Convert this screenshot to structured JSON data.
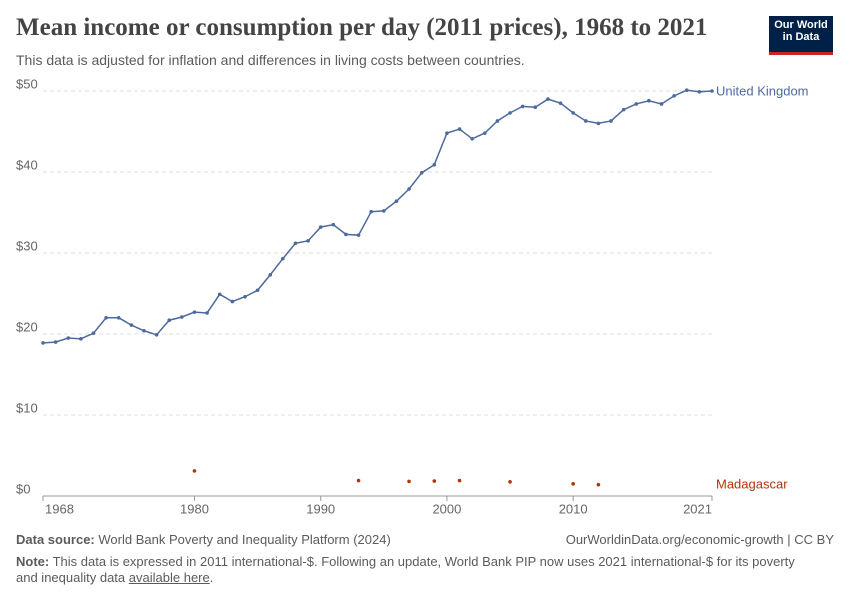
{
  "chart_data": {
    "type": "line",
    "title": "Mean income or consumption per day (2011 prices), 1968 to 2021",
    "subtitle": "This data is adjusted for inflation and differences in living costs between countries.",
    "logo": "Our World in Data",
    "x": [
      1968,
      1969,
      1970,
      1971,
      1972,
      1973,
      1974,
      1975,
      1976,
      1977,
      1978,
      1979,
      1980,
      1981,
      1982,
      1983,
      1984,
      1985,
      1986,
      1987,
      1988,
      1989,
      1990,
      1991,
      1992,
      1993,
      1994,
      1995,
      1996,
      1997,
      1998,
      1999,
      2000,
      2001,
      2002,
      2003,
      2004,
      2005,
      2006,
      2007,
      2008,
      2009,
      2010,
      2011,
      2012,
      2013,
      2014,
      2015,
      2016,
      2017,
      2018,
      2019,
      2020,
      2021
    ],
    "series": [
      {
        "name": "United Kingdom",
        "color": "#4c6a9c",
        "values": [
          18.9,
          19.0,
          19.5,
          19.4,
          20.1,
          22.0,
          22.0,
          21.1,
          20.4,
          19.9,
          21.7,
          22.1,
          22.7,
          22.6,
          24.9,
          24.0,
          24.6,
          25.4,
          27.3,
          29.3,
          31.2,
          31.5,
          33.2,
          33.5,
          32.3,
          32.2,
          35.1,
          35.2,
          36.4,
          37.9,
          39.9,
          40.9,
          44.8,
          45.3,
          44.1,
          44.8,
          46.3,
          47.3,
          48.1,
          48.0,
          49.0,
          48.5,
          47.3,
          46.3,
          46.0,
          46.3,
          47.7,
          48.4,
          48.8,
          48.4,
          49.4,
          50.1,
          49.9,
          50.0
        ]
      },
      {
        "name": "Madagascar",
        "color": "#b13507",
        "values": [
          null,
          null,
          null,
          null,
          null,
          null,
          null,
          null,
          null,
          null,
          null,
          null,
          3.1,
          null,
          null,
          null,
          null,
          null,
          null,
          null,
          null,
          null,
          null,
          null,
          null,
          1.9,
          null,
          null,
          null,
          1.8,
          null,
          1.85,
          null,
          1.9,
          null,
          null,
          null,
          1.75,
          null,
          null,
          null,
          null,
          1.5,
          null,
          1.4,
          null,
          null,
          null,
          null,
          null,
          null,
          null,
          null,
          null
        ]
      }
    ],
    "xlim": [
      1968,
      2021
    ],
    "xticks": [
      1968,
      1980,
      1990,
      2000,
      2010,
      2021
    ],
    "ylim": [
      0,
      50
    ],
    "yticks": [
      {
        "value": 0,
        "label": "$0"
      },
      {
        "value": 10,
        "label": "$10"
      },
      {
        "value": 20,
        "label": "$20"
      },
      {
        "value": 30,
        "label": "$30"
      },
      {
        "value": 40,
        "label": "$40"
      },
      {
        "value": 50,
        "label": "$50"
      }
    ],
    "grid": true,
    "source_label": "Data source:",
    "source_text": "World Bank Poverty and Inequality Platform (2024)",
    "credit": "OurWorldinData.org/economic-growth | CC BY",
    "note_label": "Note:",
    "note_text": "This data is expressed in 2011 international-$. Following an update, World Bank PIP now uses 2021 international-$ for its poverty and inequality data",
    "note_link": "available here",
    "note_end": "."
  }
}
